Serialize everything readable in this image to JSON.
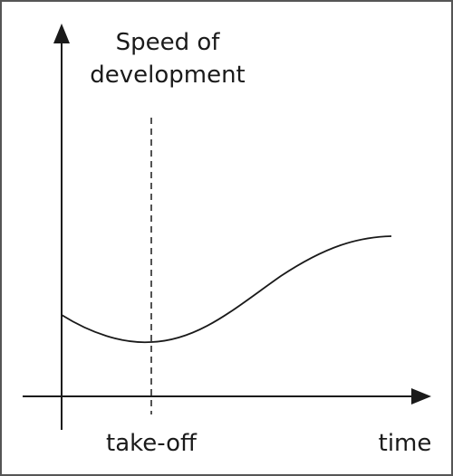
{
  "y_axis": {
    "label_lines": [
      "Speed of",
      "development"
    ]
  },
  "x_axis": {
    "label": "time"
  },
  "marker": {
    "label": "take-off"
  }
}
